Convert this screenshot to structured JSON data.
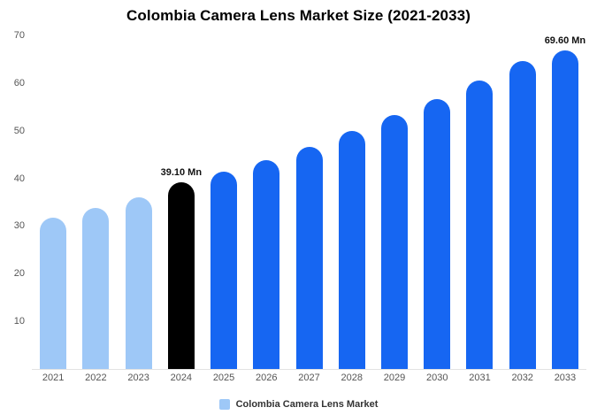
{
  "title": "Colombia Camera Lens Market Size (2021-2033)",
  "legend": {
    "label": "Colombia Camera Lens Market",
    "swatch_color": "#9ec8f7"
  },
  "colors": {
    "light_blue": "#9ec8f7",
    "primary_blue": "#1666f2",
    "highlight_black": "#000000",
    "axis_text": "#555555",
    "annotation_text": "#111111"
  },
  "chart_data": {
    "type": "bar",
    "title": "Colombia Camera Lens Market Size (2021-2033)",
    "categories": [
      "2021",
      "2022",
      "2023",
      "2024",
      "2025",
      "2026",
      "2027",
      "2028",
      "2029",
      "2030",
      "2031",
      "2032",
      "2033"
    ],
    "values": [
      31.7,
      33.8,
      36.1,
      39.1,
      41.4,
      43.9,
      46.6,
      49.9,
      53.2,
      56.6,
      60.6,
      64.7,
      69.6
    ],
    "bar_colors": [
      "#9ec8f7",
      "#9ec8f7",
      "#9ec8f7",
      "#000000",
      "#1666f2",
      "#1666f2",
      "#1666f2",
      "#1666f2",
      "#1666f2",
      "#1666f2",
      "#1666f2",
      "#1666f2",
      "#1666f2"
    ],
    "annotations": [
      {
        "category": "2024",
        "text": "39.10 Mn"
      },
      {
        "category": "2033",
        "text": "69.60 Mn"
      }
    ],
    "xlabel": "",
    "ylabel": "",
    "ylim": [
      0,
      70
    ],
    "yticks": [
      10,
      20,
      30,
      40,
      50,
      60,
      70
    ],
    "grid": false,
    "legend_position": "bottom"
  }
}
